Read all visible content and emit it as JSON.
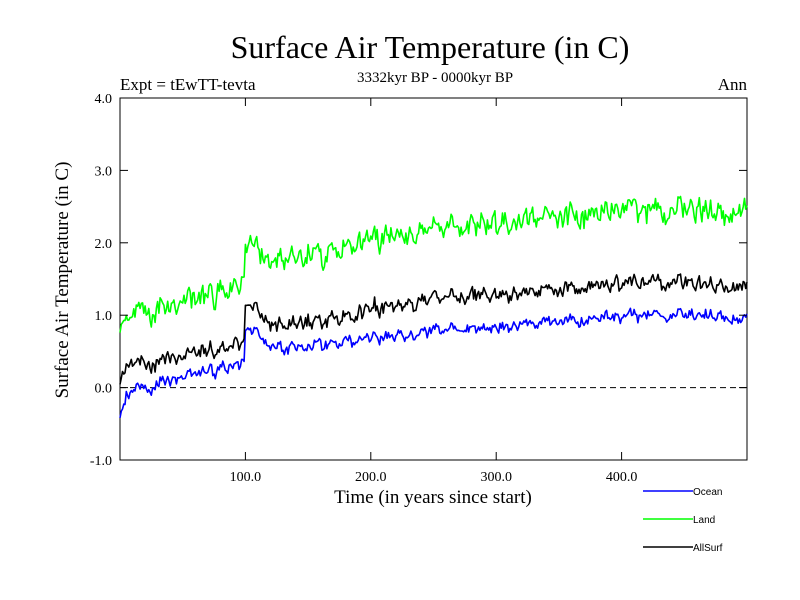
{
  "chart_data": {
    "type": "line",
    "title": "Surface Air Temperature (in C)",
    "subtitle": "3332kyr BP - 0000kyr BP",
    "expt_label": "Expt = tEwTT-tevta",
    "season_label": "Ann",
    "xlabel": "Time (in years since start)",
    "ylabel": "Surface Air Temperature (in C)",
    "xlim": [
      0,
      500
    ],
    "ylim": [
      -1.0,
      4.0
    ],
    "x_ticks": [
      100,
      200,
      300,
      400
    ],
    "x_tick_labels": [
      "100.0",
      "200.0",
      "300.0",
      "400.0"
    ],
    "y_ticks": [
      -1,
      0,
      1,
      2,
      3,
      4
    ],
    "y_tick_labels": [
      "-1.0",
      "0.0",
      "1.0",
      "2.0",
      "3.0",
      "4.0"
    ],
    "reference_line": {
      "y": 0.0,
      "style": "dashed"
    },
    "series": [
      {
        "name": "Ocean",
        "color": "#0000ff",
        "x": [
          0,
          5,
          10,
          20,
          30,
          40,
          50,
          60,
          70,
          80,
          90,
          99,
          100,
          101,
          110,
          120,
          130,
          140,
          150,
          160,
          170,
          180,
          190,
          200,
          220,
          240,
          260,
          280,
          300,
          320,
          340,
          360,
          380,
          400,
          420,
          440,
          460,
          480,
          500
        ],
        "values": [
          -0.45,
          -0.15,
          -0.05,
          0.0,
          0.05,
          0.1,
          0.15,
          0.2,
          0.22,
          0.25,
          0.28,
          0.28,
          0.3,
          0.8,
          0.7,
          0.6,
          0.55,
          0.55,
          0.55,
          0.6,
          0.62,
          0.65,
          0.68,
          0.7,
          0.72,
          0.75,
          0.8,
          0.82,
          0.85,
          0.88,
          0.9,
          0.92,
          0.95,
          1.0,
          0.98,
          1.0,
          0.98,
          0.98,
          0.95
        ],
        "noise": 0.14
      },
      {
        "name": "Land",
        "color": "#00ff00",
        "x": [
          0,
          5,
          10,
          20,
          30,
          40,
          50,
          60,
          70,
          80,
          90,
          99,
          100,
          101,
          110,
          120,
          130,
          140,
          150,
          160,
          170,
          180,
          190,
          200,
          220,
          240,
          260,
          280,
          300,
          320,
          340,
          360,
          380,
          400,
          420,
          440,
          460,
          480,
          500
        ],
        "values": [
          0.7,
          0.9,
          1.0,
          1.1,
          1.1,
          1.1,
          1.2,
          1.25,
          1.25,
          1.3,
          1.3,
          1.35,
          1.4,
          2.0,
          1.85,
          1.8,
          1.8,
          1.8,
          1.8,
          1.85,
          1.9,
          1.95,
          2.0,
          2.05,
          2.1,
          2.15,
          2.2,
          2.25,
          2.3,
          2.3,
          2.35,
          2.4,
          2.4,
          2.5,
          2.4,
          2.45,
          2.45,
          2.35,
          2.5
        ],
        "noise": 0.28
      },
      {
        "name": "AllSurf",
        "color": "#000000",
        "x": [
          0,
          5,
          10,
          20,
          30,
          40,
          50,
          60,
          70,
          80,
          90,
          99,
          100,
          101,
          110,
          120,
          130,
          140,
          150,
          160,
          170,
          180,
          190,
          200,
          220,
          240,
          260,
          280,
          300,
          320,
          340,
          360,
          380,
          400,
          420,
          440,
          460,
          480,
          500
        ],
        "values": [
          0.0,
          0.25,
          0.32,
          0.35,
          0.38,
          0.4,
          0.45,
          0.48,
          0.5,
          0.52,
          0.55,
          0.58,
          0.6,
          1.15,
          1.0,
          0.9,
          0.88,
          0.88,
          0.9,
          0.92,
          0.95,
          1.0,
          1.05,
          1.1,
          1.15,
          1.2,
          1.25,
          1.28,
          1.3,
          1.32,
          1.35,
          1.38,
          1.4,
          1.45,
          1.42,
          1.45,
          1.42,
          1.4,
          1.4
        ],
        "noise": 0.18
      }
    ]
  }
}
